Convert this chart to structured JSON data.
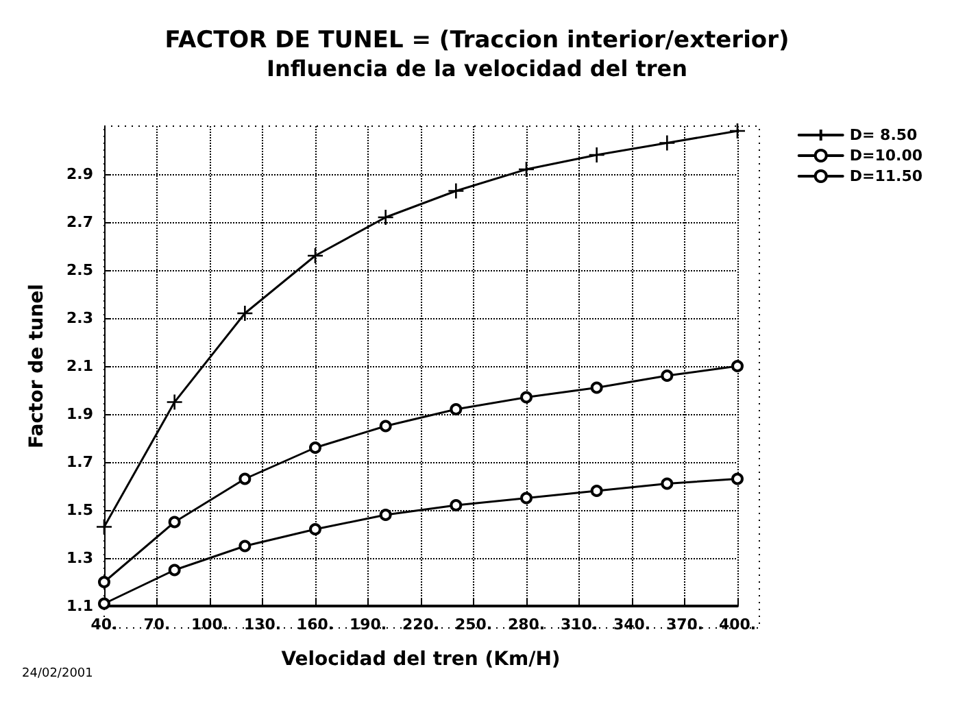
{
  "chart_data": {
    "type": "line",
    "title": "FACTOR DE TUNEL = (Traccion interior/exterior)",
    "subtitle": "Influencia de la velocidad del tren",
    "xlabel": "Velocidad del tren (Km/H)",
    "ylabel": "Factor de tunel",
    "x": [
      40,
      80,
      120,
      160,
      200,
      240,
      280,
      320,
      360,
      400
    ],
    "series": [
      {
        "name": "D= 8.50",
        "color": "#000000",
        "marker": "cross",
        "values": [
          1.43,
          1.95,
          2.32,
          2.56,
          2.72,
          2.83,
          2.92,
          2.98,
          3.03,
          3.08
        ]
      },
      {
        "name": "D=10.00",
        "color": "#000000",
        "marker": "circle",
        "values": [
          1.2,
          1.45,
          1.63,
          1.76,
          1.85,
          1.92,
          1.97,
          2.01,
          2.06,
          2.1
        ]
      },
      {
        "name": "D=11.50",
        "color": "#000000",
        "marker": "circle",
        "values": [
          1.11,
          1.25,
          1.35,
          1.42,
          1.48,
          1.52,
          1.55,
          1.58,
          1.61,
          1.63
        ]
      }
    ],
    "xlim": [
      40,
      400
    ],
    "xticks": [
      {
        "value": 40,
        "label": "40."
      },
      {
        "value": 70,
        "label": "70."
      },
      {
        "value": 100,
        "label": "100."
      },
      {
        "value": 130,
        "label": "130."
      },
      {
        "value": 160,
        "label": "160."
      },
      {
        "value": 190,
        "label": "190."
      },
      {
        "value": 220,
        "label": "220."
      },
      {
        "value": 250,
        "label": "250."
      },
      {
        "value": 280,
        "label": "280."
      },
      {
        "value": 310,
        "label": "310."
      },
      {
        "value": 340,
        "label": "340."
      },
      {
        "value": 370,
        "label": "370."
      },
      {
        "value": 400,
        "label": "400."
      }
    ],
    "ylim": [
      1.1,
      3.1
    ],
    "yticks": [
      1.1,
      1.3,
      1.5,
      1.7,
      1.9,
      2.1,
      2.3,
      2.5,
      2.7,
      2.9
    ],
    "grid": true,
    "legend": "top right",
    "line_style": "solid",
    "annotations": [
      "24/02/2001"
    ]
  }
}
